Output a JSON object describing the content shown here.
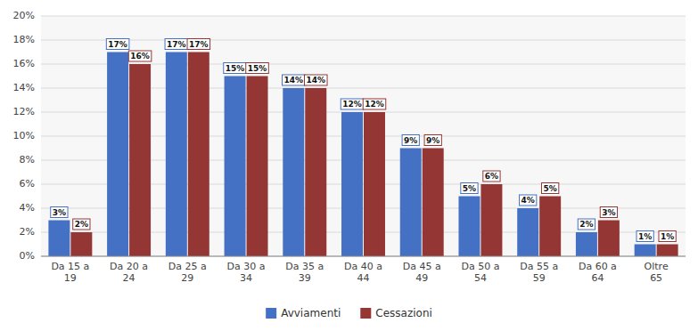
{
  "chart_data": {
    "type": "bar",
    "categories": [
      "Da 15 a\n19",
      "Da 20 a\n24",
      "Da 25 a\n29",
      "Da 30 a\n34",
      "Da 35 a\n39",
      "Da 40 a\n44",
      "Da 45 a\n49",
      "Da 50 a\n54",
      "Da 55 a\n59",
      "Da 60 a\n64",
      "Oltre\n65"
    ],
    "series": [
      {
        "name": "Avviamenti",
        "color": "#4471C4",
        "values": [
          3,
          17,
          17,
          15,
          14,
          12,
          9,
          5,
          4,
          2,
          1
        ],
        "value_labels": [
          "3%",
          "17%",
          "17%",
          "15%",
          "14%",
          "12%",
          "9%",
          "5%",
          "4%",
          "2%",
          "1%"
        ]
      },
      {
        "name": "Cessazioni",
        "color": "#943634",
        "values": [
          2,
          16,
          17,
          15,
          14,
          12,
          9,
          6,
          5,
          3,
          1
        ],
        "value_labels": [
          "2%",
          "16%",
          "17%",
          "15%",
          "14%",
          "12%",
          "9%",
          "6%",
          "5%",
          "3%",
          "1%"
        ]
      }
    ],
    "ylim": [
      0,
      20
    ],
    "yticks": [
      {
        "value": 0,
        "label": "0%"
      },
      {
        "value": 2,
        "label": "2%"
      },
      {
        "value": 4,
        "label": "4%"
      },
      {
        "value": 6,
        "label": "6%"
      },
      {
        "value": 8,
        "label": "8%"
      },
      {
        "value": 10,
        "label": "10%"
      },
      {
        "value": 12,
        "label": "12%"
      },
      {
        "value": 14,
        "label": "14%"
      },
      {
        "value": 16,
        "label": "16%"
      },
      {
        "value": 18,
        "label": "18%"
      },
      {
        "value": 20,
        "label": "20%"
      }
    ],
    "grid": true,
    "legend": "bottom",
    "data_labels": true
  }
}
